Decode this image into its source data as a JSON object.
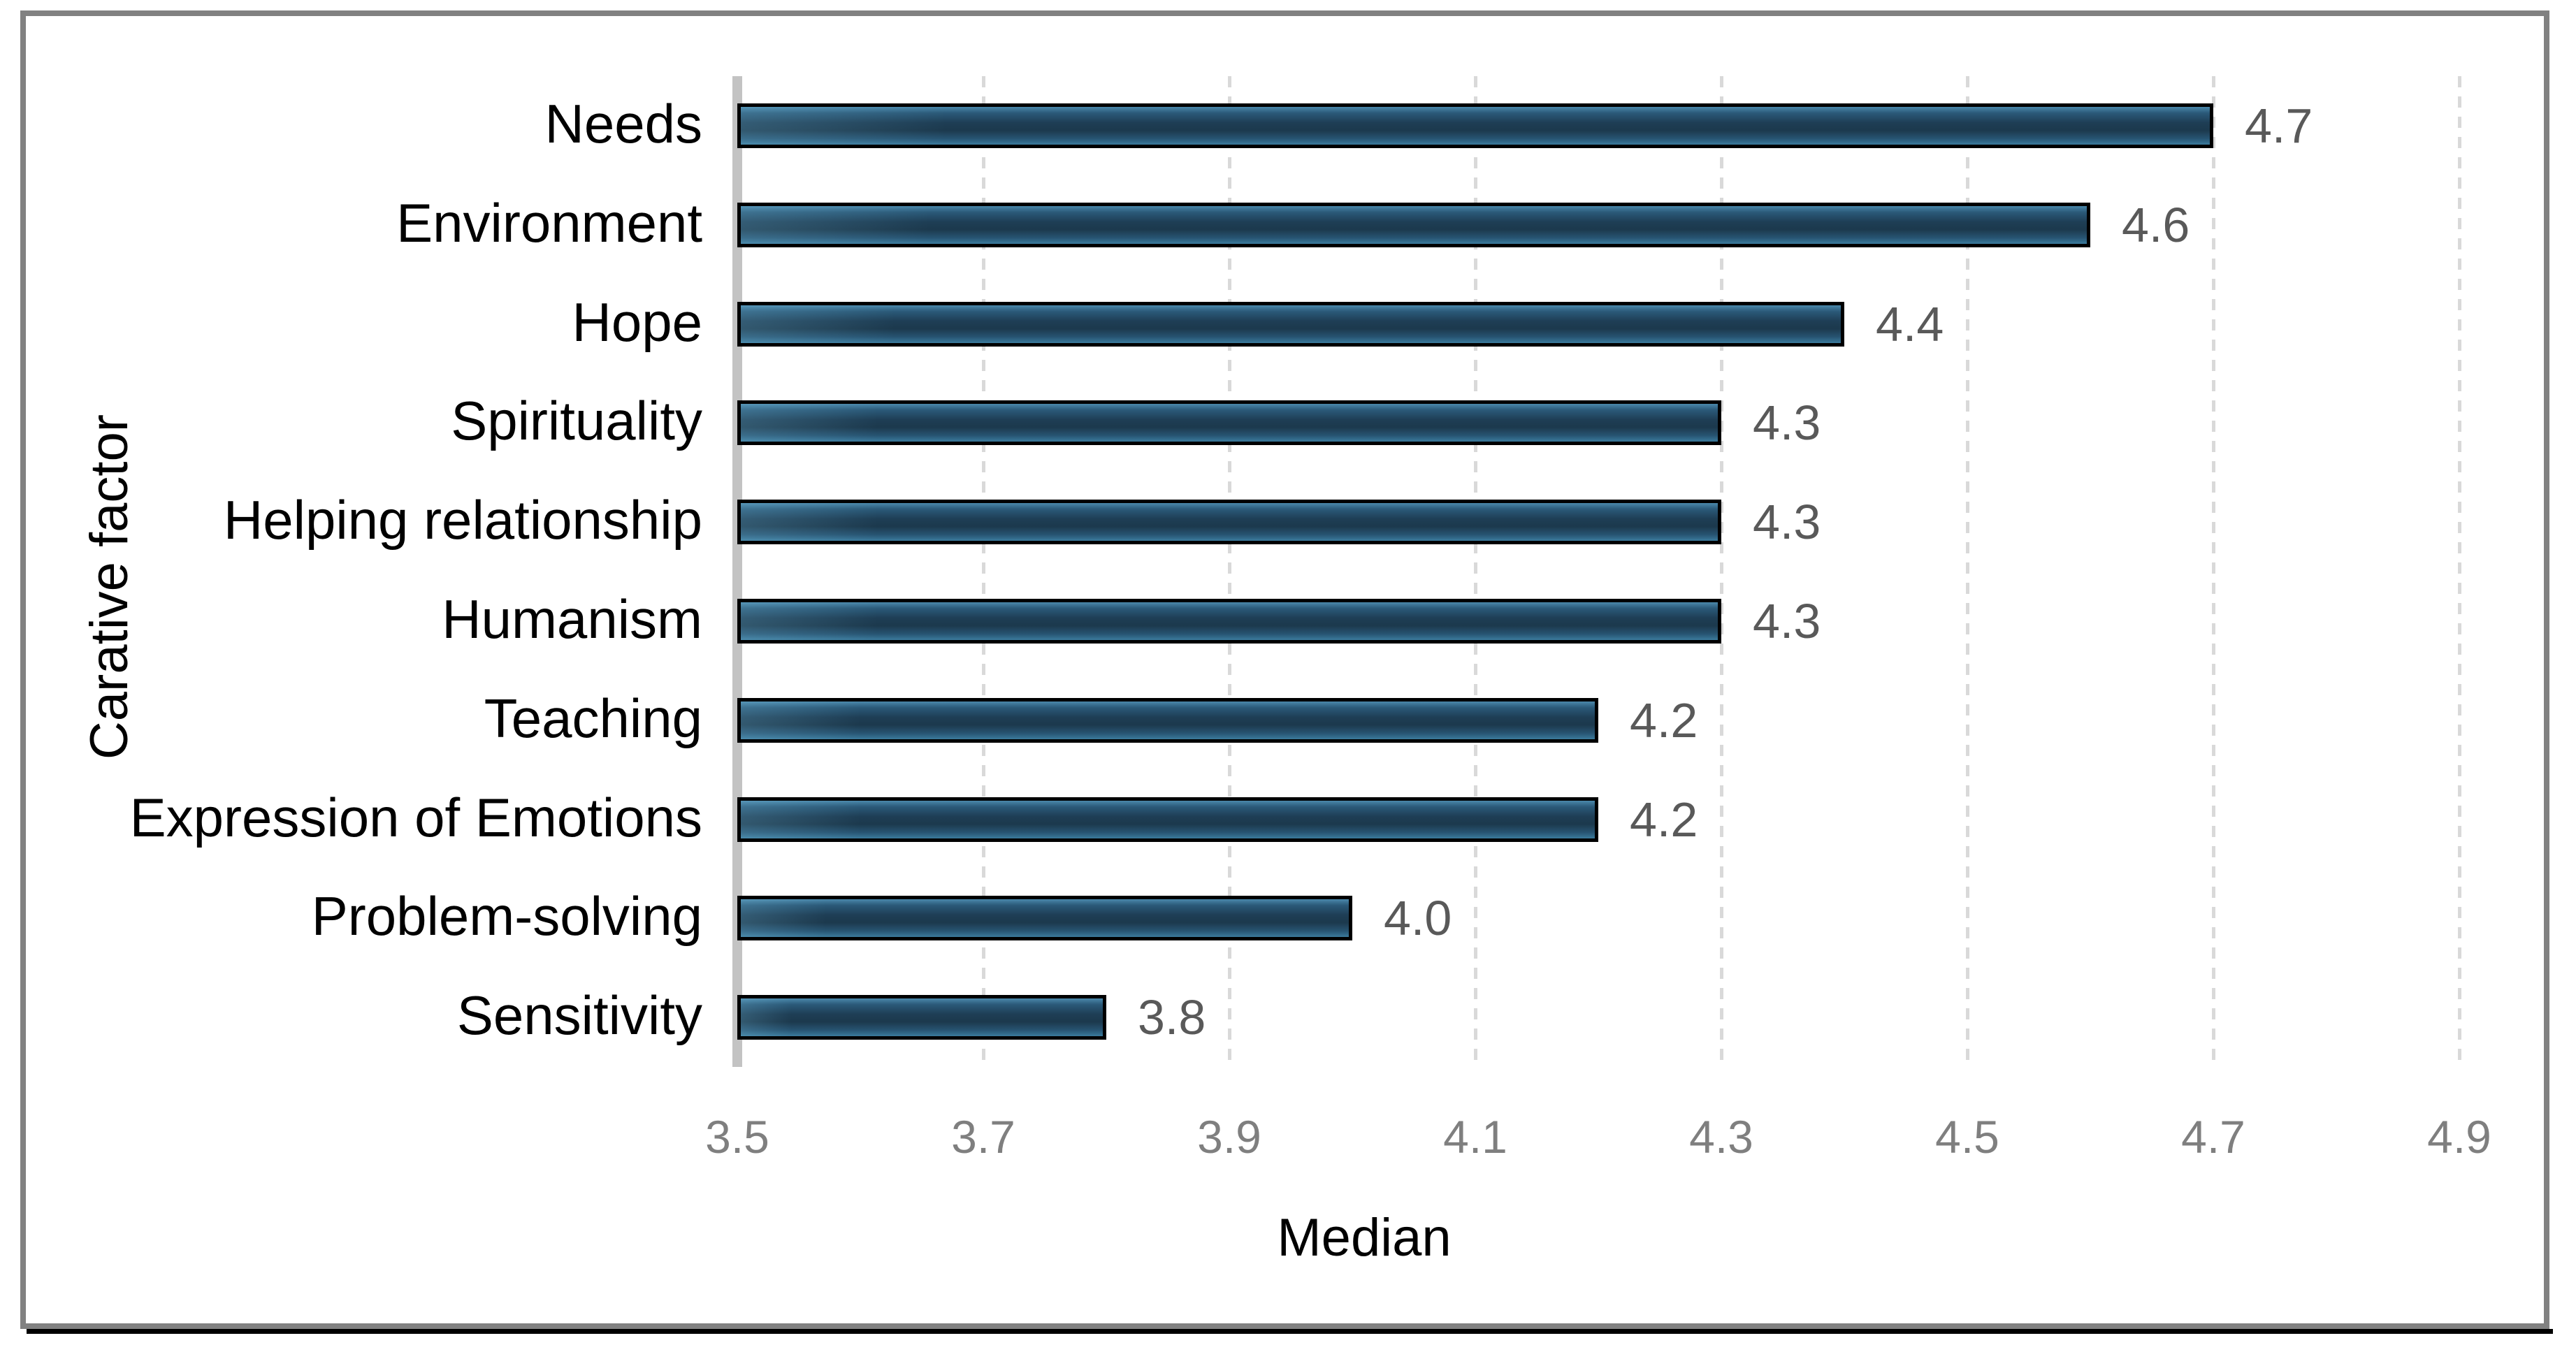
{
  "chart_data": {
    "type": "bar",
    "orientation": "horizontal",
    "xlabel": "Median",
    "ylabel": "Carative factor",
    "categories": [
      "Needs",
      "Environment",
      "Hope",
      "Spirituality",
      "Helping relationship",
      "Humanism",
      "Teaching",
      "Expression of Emotions",
      "Problem-solving",
      "Sensitivity"
    ],
    "values": [
      4.7,
      4.6,
      4.4,
      4.3,
      4.3,
      4.3,
      4.2,
      4.2,
      4.0,
      3.8
    ],
    "value_labels": [
      "4.7",
      "4.6",
      "4.4",
      "4.3",
      "4.3",
      "4.3",
      "4.2",
      "4.2",
      "4.0",
      "3.8"
    ],
    "xlim": [
      3.5,
      4.9
    ],
    "xticks": [
      3.5,
      3.7,
      3.9,
      4.1,
      4.3,
      4.5,
      4.7,
      4.9
    ],
    "xtick_labels": [
      "3.5",
      "3.7",
      "3.9",
      "4.1",
      "4.3",
      "4.5",
      "4.7",
      "4.9"
    ],
    "grid": "vertical-dashed",
    "legend": "none",
    "colors": {
      "bar_fill_top": "#4a88ab",
      "bar_fill_mid": "#1c394d",
      "bar_fill_bottom": "#3b7a9c",
      "bar_border": "#000000",
      "gridline": "#d9d9d9",
      "axis_line": "#c3c3c3",
      "tick_label": "#7f7f7f",
      "data_label": "#595959",
      "category_label": "#000000",
      "frame_border": "#818181",
      "frame_shadow": "#000000"
    }
  }
}
